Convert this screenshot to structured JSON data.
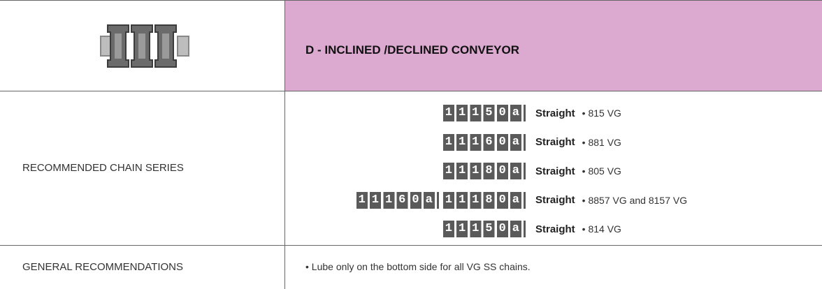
{
  "header": {
    "title": "D - INCLINED /DECLINED CONVEYOR"
  },
  "rows": [
    {
      "label": "RECOMMENDED CHAIN SERIES",
      "chains": [
        {
          "codes": [
            "11150a"
          ],
          "type": "Straight",
          "detail": "• 815 VG"
        },
        {
          "codes": [
            "11160a"
          ],
          "type": "Straight",
          "detail": "• 881 VG"
        },
        {
          "codes": [
            "11180a"
          ],
          "type": "Straight",
          "detail": "• 805 VG"
        },
        {
          "codes": [
            "11160a",
            "11180a"
          ],
          "type": "Straight",
          "detail": "• 8857 VG and 8157 VG"
        },
        {
          "codes": [
            "11150a"
          ],
          "type": "Straight",
          "detail": "• 814 VG"
        }
      ]
    },
    {
      "label": "GENERAL RECOMMENDATIONS",
      "items": [
        "• Lube only on the bottom side for all VG SS chains."
      ]
    }
  ]
}
